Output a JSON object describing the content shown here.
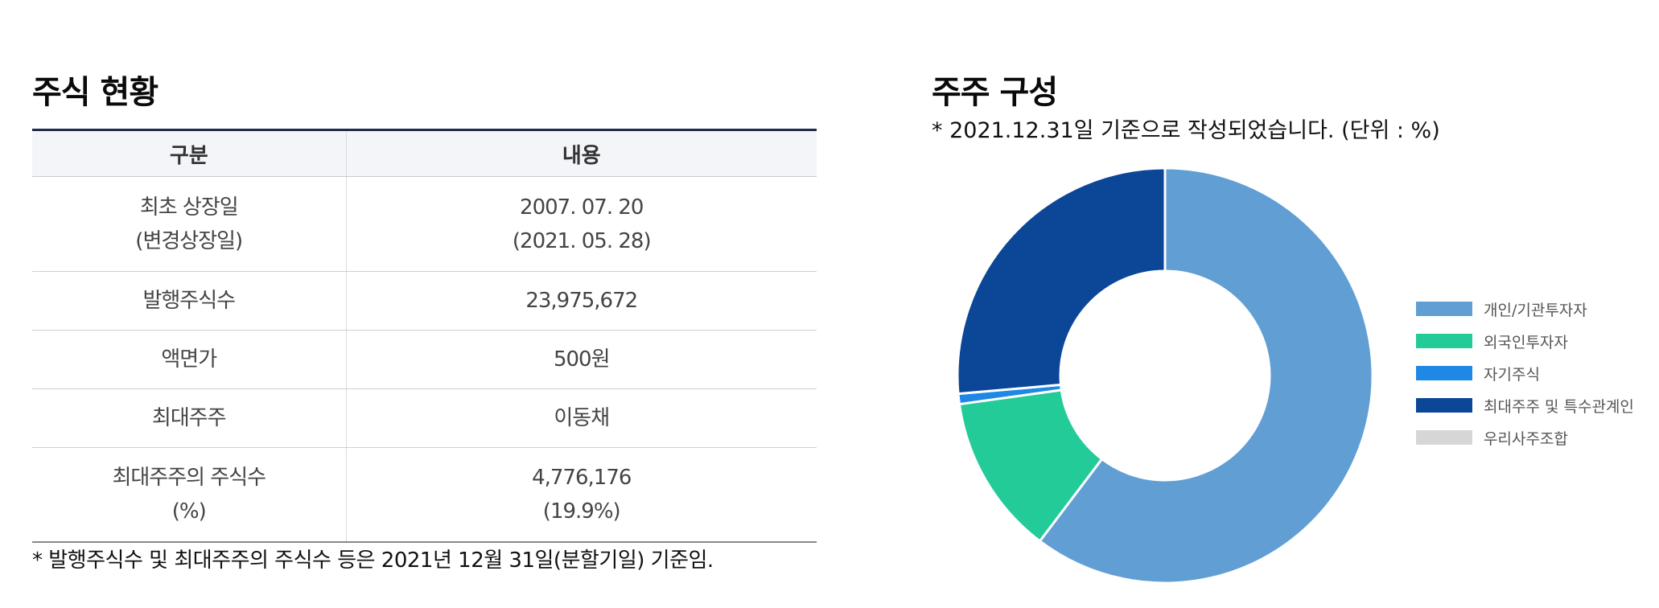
{
  "stock_status": {
    "title": "주식 현황",
    "headers": [
      "구분",
      "내용"
    ],
    "rows": [
      {
        "label_line1": "최초 상장일",
        "label_line2": "(변경상장일)",
        "value_line1": "2007. 07. 20",
        "value_line2": "(2021. 05. 28)"
      },
      {
        "label_line1": "발행주식수",
        "label_line2": "",
        "value_line1": "23,975,672",
        "value_line2": ""
      },
      {
        "label_line1": "액면가",
        "label_line2": "",
        "value_line1": "500원",
        "value_line2": ""
      },
      {
        "label_line1": "최대주주",
        "label_line2": "",
        "value_line1": "이동채",
        "value_line2": ""
      },
      {
        "label_line1": "최대주주의 주식수",
        "label_line2": "(%)",
        "value_line1": "4,776,176",
        "value_line2": "(19.9%)"
      }
    ],
    "note": "* 발행주식수 및 최대주주의 주식수 등은 2021년 12월 31일(분할기일) 기준임."
  },
  "shareholders": {
    "title": "주주 구성",
    "subtitle": "* 2021.12.31일 기준으로 작성되었습니다. (단위 : %)"
  },
  "chart_data": {
    "type": "pie",
    "subtype": "donut",
    "title": "주주 구성",
    "subtitle": "* 2021.12.31일 기준으로 작성되었습니다. (단위 : %)",
    "unit": "%",
    "categories": [
      "개인/기관투자자",
      "외국인투자자",
      "자기주식",
      "최대주주 및 특수관계인",
      "우리사주조합"
    ],
    "values": [
      60.3,
      12.5,
      0.8,
      26.4,
      0.0
    ],
    "colors": [
      "#619ed4",
      "#22cb98",
      "#1e88e5",
      "#0b4697",
      "#d6d6d6"
    ],
    "start_angle_deg": 0,
    "direction": "clockwise",
    "legend_position": "right"
  }
}
